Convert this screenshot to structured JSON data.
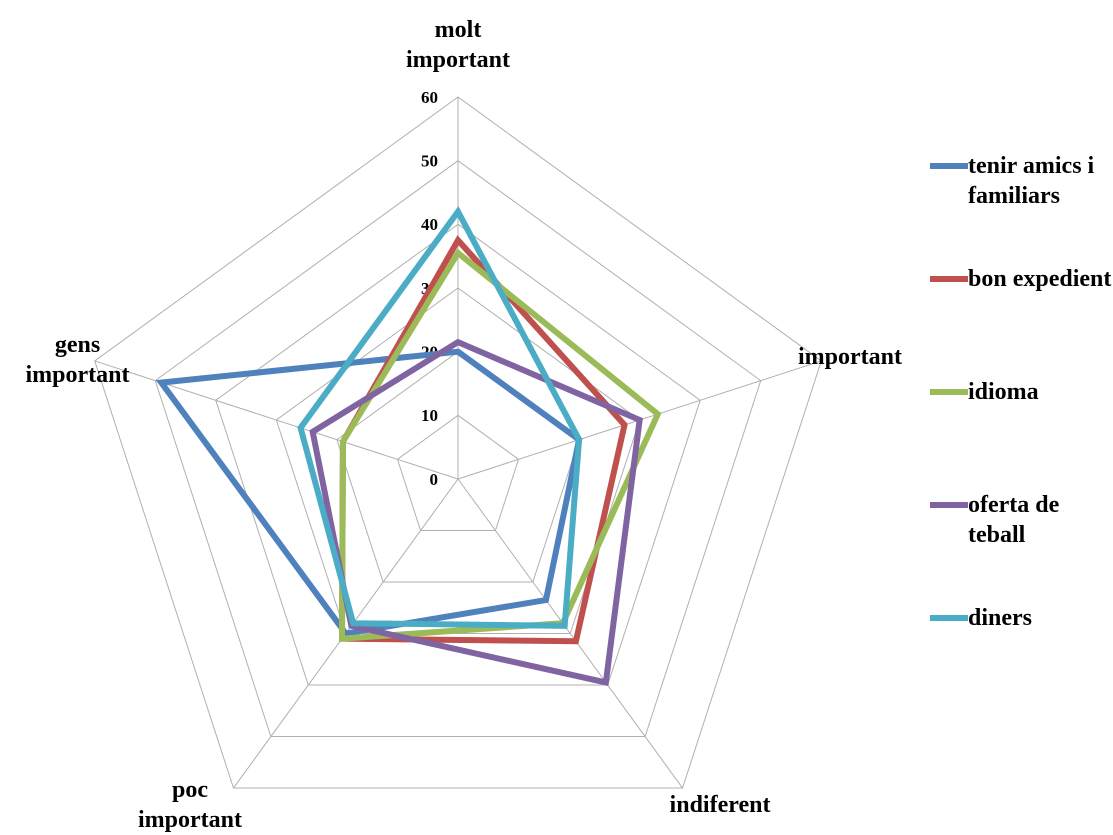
{
  "chart_data": {
    "type": "radar",
    "categories": [
      "molt important",
      "important",
      "indiferent",
      "poc important",
      "gens important"
    ],
    "ylim": [
      0,
      60
    ],
    "yticks": [
      0,
      10,
      20,
      30,
      40,
      50,
      60
    ],
    "grid": true,
    "legend": "right",
    "series": [
      {
        "name": "tenir amics i familiars",
        "color": "#4f81bd",
        "values": [
          20,
          20,
          23.5,
          30,
          49
        ]
      },
      {
        "name": "bon expedient",
        "color": "#c0504d",
        "values": [
          37.5,
          27.5,
          31.5,
          31,
          19
        ]
      },
      {
        "name": "idioma",
        "color": "#9bbb59",
        "values": [
          35.5,
          33,
          28,
          31,
          19
        ]
      },
      {
        "name": "oferta de teball",
        "color": "#8064a2",
        "values": [
          21.5,
          30,
          39.5,
          28.5,
          24
        ]
      },
      {
        "name": "diners",
        "color": "#4bacc6",
        "values": [
          42,
          20,
          28.5,
          28,
          26
        ]
      }
    ]
  }
}
